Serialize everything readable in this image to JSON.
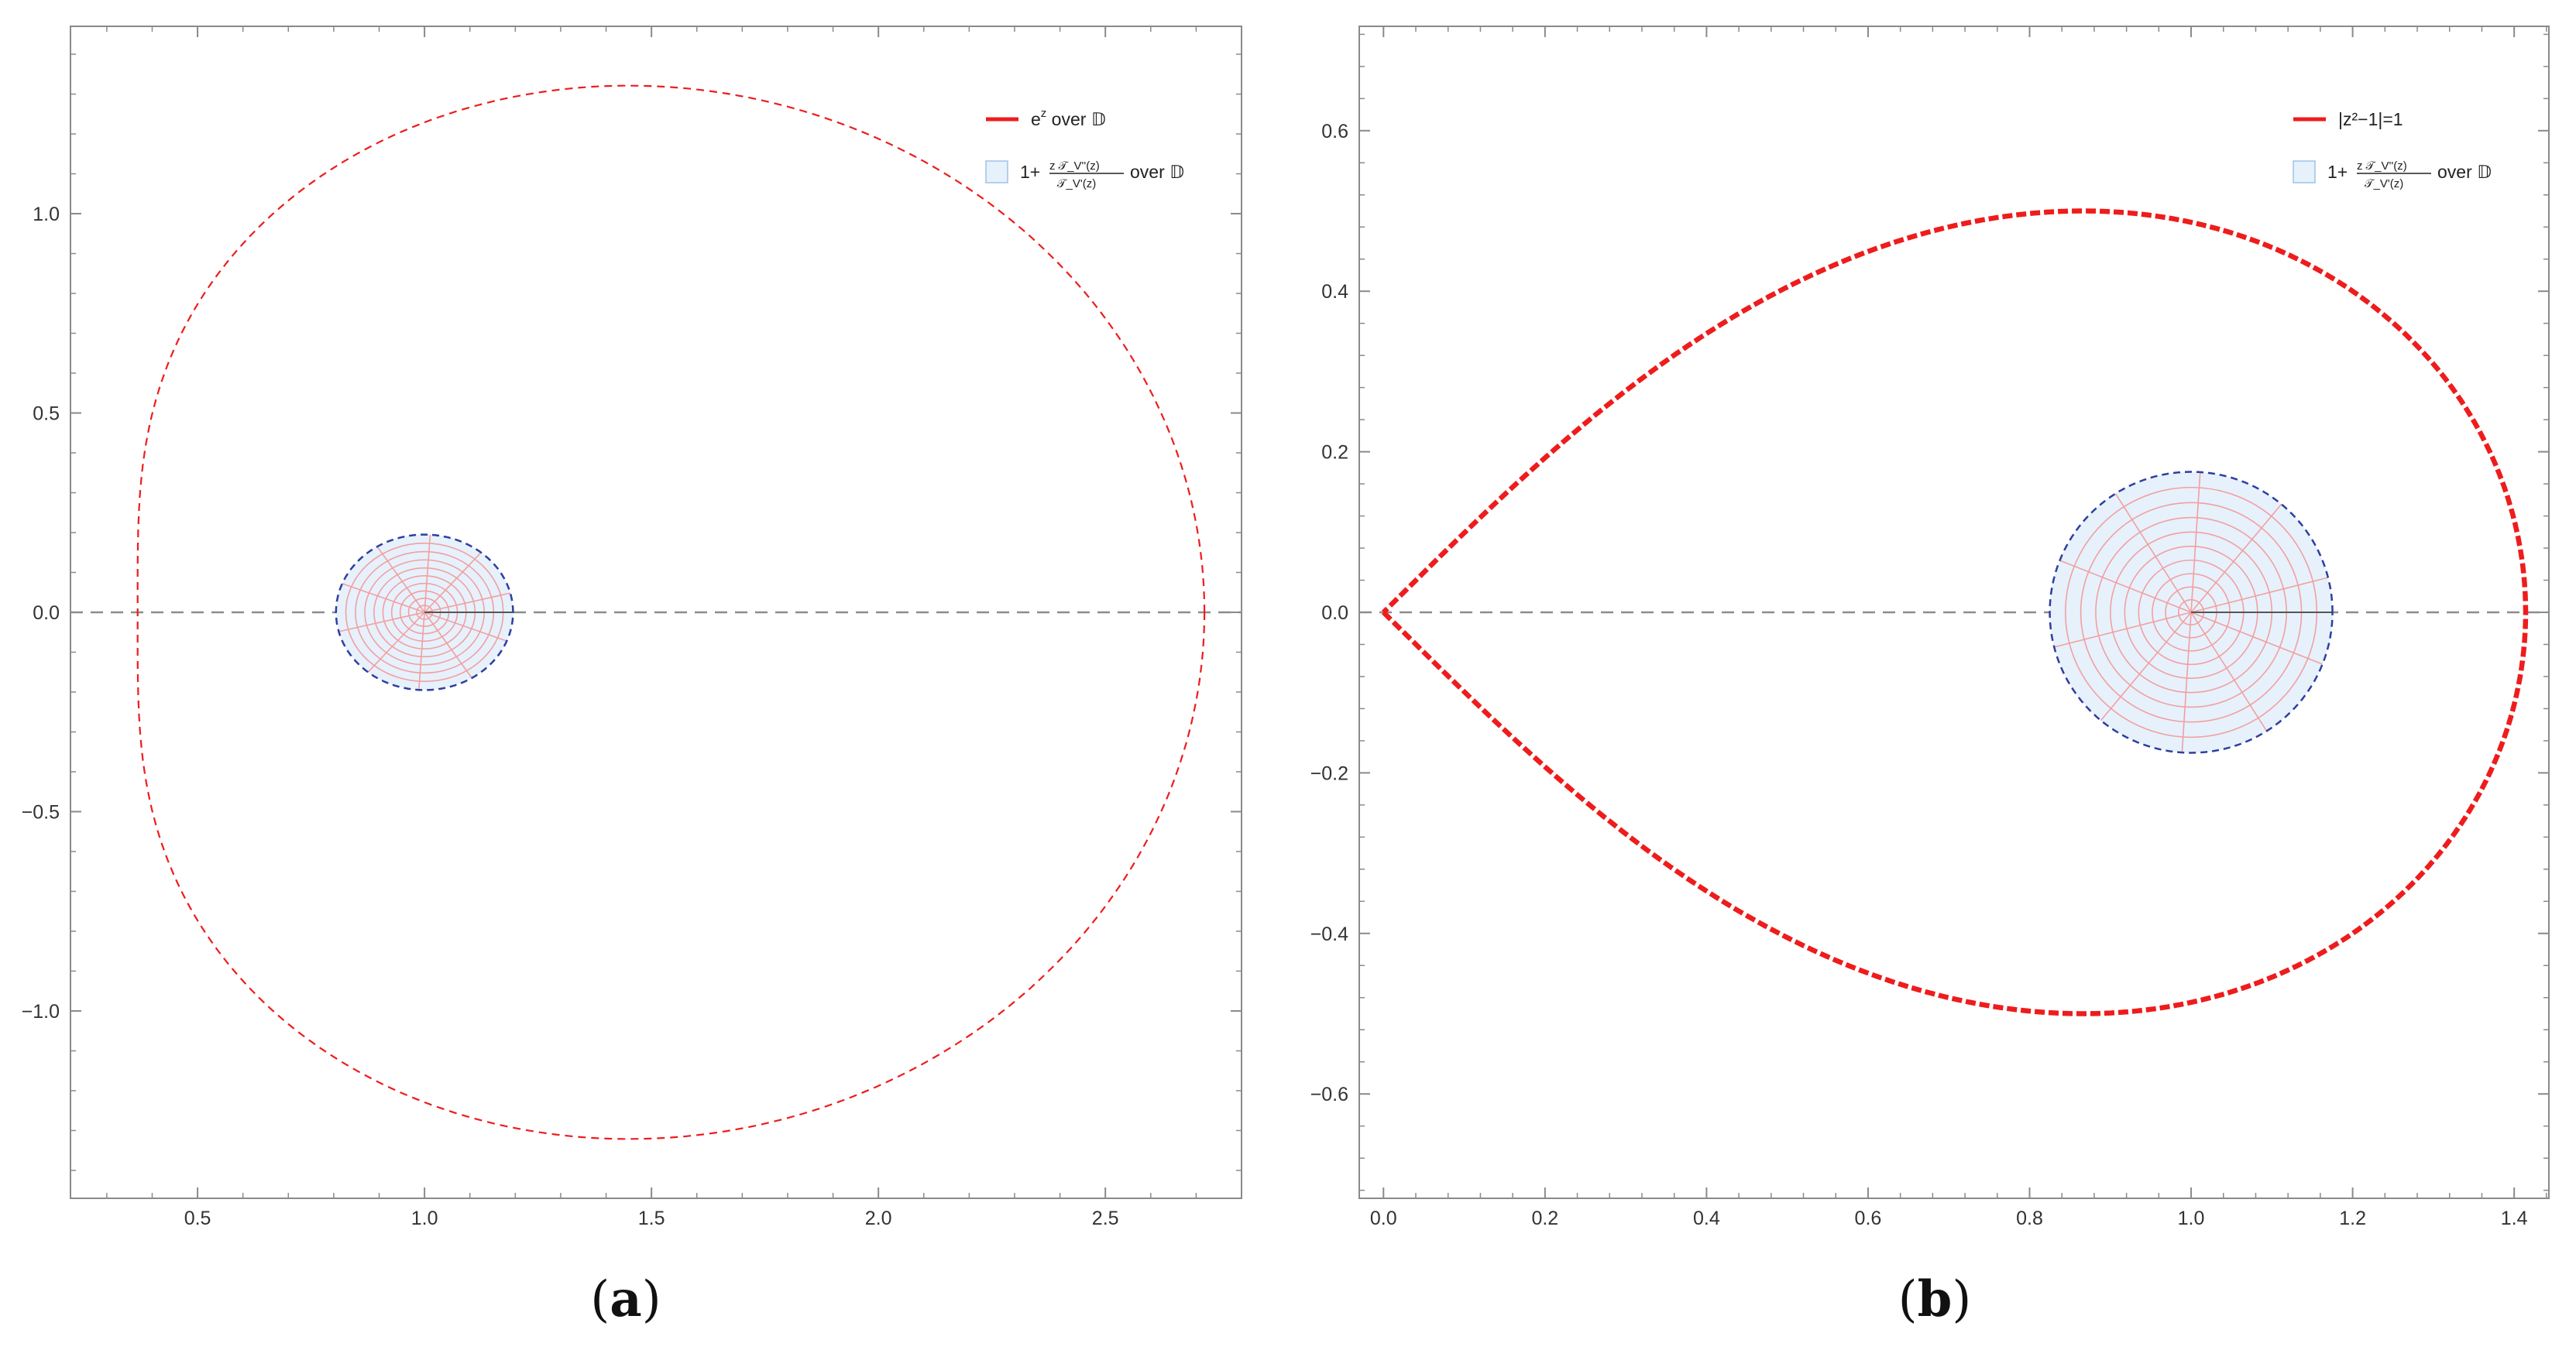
{
  "colors": {
    "curve": "#ee1c1c",
    "disk_fill": "#e6f1fc",
    "disk_border": "#2e3f9e",
    "disk_grid": "#f2a0a0",
    "axis_dash": "#8c8c8c"
  },
  "chart_data": [
    {
      "type": "line",
      "panel": "a",
      "caption_letter": "a",
      "caption_open": "(",
      "caption_close": ")",
      "xlim": [
        0.22,
        2.8
      ],
      "ylim": [
        -1.47,
        1.47
      ],
      "x_ticks": [
        0.5,
        1.0,
        1.5,
        2.0,
        2.5
      ],
      "x_tick_labels": [
        "0.5",
        "1.0",
        "1.5",
        "2.0",
        "2.5"
      ],
      "y_ticks": [
        -1.0,
        -0.5,
        0.0,
        0.5,
        1.0
      ],
      "y_tick_labels": [
        "−1.0",
        "−0.5",
        "0.0",
        "0.5",
        "1.0"
      ],
      "grid": false,
      "legend_position": "top-right",
      "series": [
        {
          "name": "e^z over 𝔻",
          "kind": "image of unit circle under exp",
          "curve": {
            "function": "exp",
            "radius": 1.0
          },
          "style": "thin-dashed"
        },
        {
          "name": "1+zT''(z)/T'(z) over 𝔻",
          "kind": "filled region",
          "curve": {
            "function": "circle",
            "center": [
              1.0,
              0.0
            ],
            "radius": 0.195
          },
          "style": "filled-polar-grid"
        }
      ],
      "legend": [
        {
          "main": "over 𝔻",
          "expr": "e",
          "sup": "z"
        },
        {
          "main": "over 𝔻",
          "expr": "1+",
          "num": "z 𝒯_V''(z)",
          "den": "𝒯_V'(z)"
        }
      ]
    },
    {
      "type": "line",
      "panel": "b",
      "caption_letter": "b",
      "caption_open": "(",
      "caption_close": ")",
      "xlim": [
        -0.03,
        1.443
      ],
      "ylim": [
        -0.73,
        0.73
      ],
      "x_ticks": [
        0.0,
        0.2,
        0.4,
        0.6,
        0.8,
        1.0,
        1.2,
        1.4
      ],
      "x_tick_labels": [
        "0.0",
        "0.2",
        "0.4",
        "0.6",
        "0.8",
        "1.0",
        "1.2",
        "1.4"
      ],
      "y_ticks": [
        -0.6,
        -0.4,
        -0.2,
        0.0,
        0.2,
        0.4,
        0.6
      ],
      "y_tick_labels": [
        "−0.6",
        "−0.4",
        "−0.2",
        "0.0",
        "0.2",
        "0.4",
        "0.6"
      ],
      "grid": false,
      "legend_position": "top-right",
      "series": [
        {
          "name": "|z²−1|=1",
          "kind": "lemniscate lobe (right half)",
          "curve": {
            "function": "lemniscate",
            "a_squared": 2
          },
          "style": "thick-dashed"
        },
        {
          "name": "1+zT''(z)/T'(z) over 𝔻",
          "kind": "filled region",
          "curve": {
            "function": "circle",
            "center": [
              1.0,
              0.0
            ],
            "radius": 0.175
          },
          "style": "filled-polar-grid"
        }
      ],
      "legend": [
        {
          "main": "|z²−1|=1"
        },
        {
          "main": "over 𝔻",
          "expr": "1+",
          "num": "z 𝒯_V''(z)",
          "den": "𝒯_V'(z)"
        }
      ]
    }
  ]
}
